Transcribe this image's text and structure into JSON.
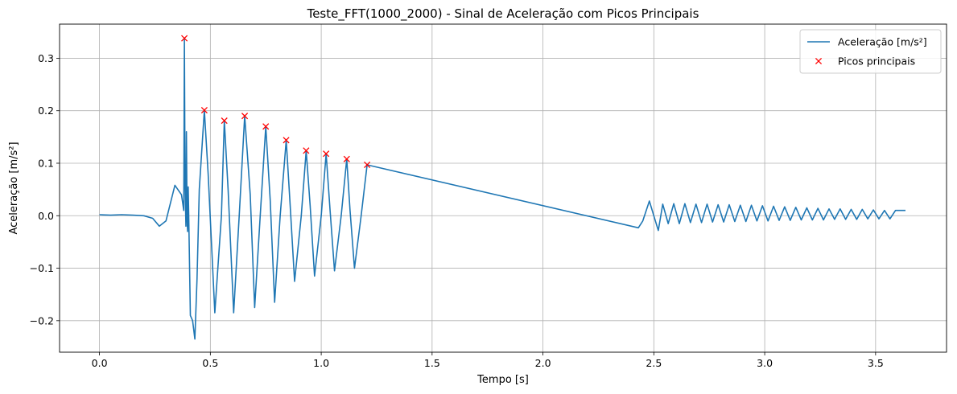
{
  "chart_data": {
    "type": "line",
    "title": "Teste_FFT(1000_2000) - Sinal de Aceleração com Picos Principais",
    "xlabel": "Tempo [s]",
    "ylabel": "Aceleração [m/s²]",
    "xlim": [
      -0.18,
      3.82
    ],
    "ylim": [
      -0.26,
      0.365
    ],
    "xticks": [
      0.0,
      0.5,
      1.0,
      1.5,
      2.0,
      2.5,
      3.0,
      3.5
    ],
    "xtick_labels": [
      "0.0",
      "0.5",
      "1.0",
      "1.5",
      "2.0",
      "2.5",
      "3.0",
      "3.5"
    ],
    "yticks": [
      -0.2,
      -0.1,
      0.0,
      0.1,
      0.2,
      0.3
    ],
    "ytick_labels": [
      "−0.2",
      "−0.1",
      "0.0",
      "0.1",
      "0.2",
      "0.3"
    ],
    "grid": true,
    "legend_position": "top-right",
    "series": [
      {
        "name": "Aceleração [m/s²]",
        "style": "line",
        "color": "#1f77b4",
        "x": [
          0.0,
          0.05,
          0.1,
          0.15,
          0.2,
          0.24,
          0.27,
          0.3,
          0.34,
          0.37,
          0.38,
          0.383,
          0.386,
          0.39,
          0.392,
          0.395,
          0.397,
          0.4,
          0.403,
          0.41,
          0.42,
          0.43,
          0.44,
          0.45,
          0.473,
          0.49,
          0.52,
          0.55,
          0.563,
          0.58,
          0.605,
          0.63,
          0.655,
          0.68,
          0.7,
          0.725,
          0.75,
          0.77,
          0.79,
          0.815,
          0.842,
          0.86,
          0.88,
          0.91,
          0.932,
          0.95,
          0.97,
          1.0,
          1.022,
          1.04,
          1.06,
          1.09,
          1.115,
          1.13,
          1.15,
          1.18,
          1.207,
          2.43,
          2.45,
          2.48,
          2.5,
          2.52,
          2.54,
          2.565,
          2.59,
          2.615,
          2.64,
          2.665,
          2.69,
          2.715,
          2.74,
          2.765,
          2.79,
          2.815,
          2.84,
          2.865,
          2.89,
          2.915,
          2.94,
          2.965,
          2.99,
          3.015,
          3.04,
          3.065,
          3.09,
          3.115,
          3.14,
          3.165,
          3.19,
          3.215,
          3.24,
          3.265,
          3.29,
          3.315,
          3.34,
          3.365,
          3.39,
          3.415,
          3.44,
          3.465,
          3.49,
          3.515,
          3.54,
          3.565,
          3.59,
          3.615,
          3.635
        ],
        "values": [
          0.002,
          0.001,
          0.002,
          0.001,
          0.0,
          -0.005,
          -0.02,
          -0.01,
          0.058,
          0.04,
          0.01,
          0.338,
          0.06,
          -0.02,
          0.16,
          0.0,
          -0.03,
          0.055,
          -0.01,
          -0.19,
          -0.2,
          -0.235,
          -0.12,
          0.05,
          0.201,
          0.08,
          -0.185,
          0.0,
          0.181,
          0.05,
          -0.185,
          0.0,
          0.19,
          0.04,
          -0.175,
          0.0,
          0.17,
          0.03,
          -0.165,
          0.0,
          0.144,
          0.02,
          -0.125,
          0.0,
          0.124,
          0.02,
          -0.115,
          0.0,
          0.118,
          0.01,
          -0.105,
          0.0,
          0.108,
          0.01,
          -0.1,
          0.0,
          0.097,
          -0.023,
          -0.01,
          0.028,
          0.0,
          -0.028,
          0.022,
          -0.015,
          0.023,
          -0.015,
          0.023,
          -0.013,
          0.022,
          -0.013,
          0.022,
          -0.012,
          0.021,
          -0.012,
          0.021,
          -0.011,
          0.02,
          -0.011,
          0.02,
          -0.01,
          0.019,
          -0.01,
          0.018,
          -0.009,
          0.017,
          -0.009,
          0.016,
          -0.008,
          0.015,
          -0.008,
          0.014,
          -0.008,
          0.013,
          -0.007,
          0.013,
          -0.007,
          0.012,
          -0.007,
          0.012,
          -0.006,
          0.011,
          -0.006,
          0.01,
          -0.006,
          0.01,
          0.01,
          0.01
        ]
      },
      {
        "name": "Picos principais",
        "style": "markers",
        "color": "#ff0000",
        "x": [
          0.383,
          0.473,
          0.563,
          0.655,
          0.75,
          0.842,
          0.932,
          1.022,
          1.115,
          1.207
        ],
        "values": [
          0.338,
          0.201,
          0.181,
          0.19,
          0.17,
          0.144,
          0.124,
          0.118,
          0.108,
          0.097
        ]
      }
    ]
  }
}
